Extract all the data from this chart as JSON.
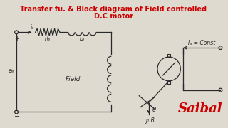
{
  "title_line1": "Transfer fu. & Block diagram of Field controlled",
  "title_line2": "D.C motor",
  "title_color": "#cc0000",
  "title_fontsize": 7.0,
  "bg_color": "#dedad0",
  "circuit_color": "#2a2a2a",
  "label_if": "iₑ",
  "label_Rf": "Rₑ",
  "label_Lf": "Lₑ",
  "label_ef": "eₑ",
  "label_field": "Field",
  "label_Ia": "Iₐ = Const",
  "label_theta": "θ",
  "label_JB": "J₁ B",
  "label_plus": "+",
  "label_minus": "−",
  "label_saibal": "Saibal",
  "saibal_color": "#cc0000",
  "figsize": [
    3.2,
    1.8
  ],
  "dpi": 100
}
